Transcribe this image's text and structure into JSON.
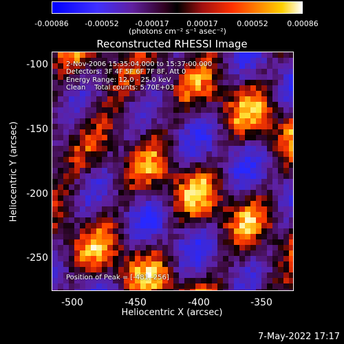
{
  "colorbar": {
    "ticks": [
      "-0.00086",
      "-0.00052",
      "-0.00017",
      "0.00017",
      "0.00052",
      "0.00086"
    ],
    "unit": "(photons cm⁻² s⁻¹ asec⁻²)"
  },
  "title": "Reconstructed RHESSI Image",
  "info": {
    "time": "2-Nov-2006 15:35:04.000 to 15:37:00.000",
    "detectors": "Detectors: 3F 4F 5F 6F 7F 8F, Att 0",
    "energy": "Energy Range: 12.0 - 25.0 keV",
    "clean": "Clean    Total counts: 5.70E+03",
    "peak": "Position of Peak = [-481,-256]"
  },
  "axes": {
    "xlabel": "Heliocentric X (arcsec)",
    "ylabel": "Heliocentric Y (arcsec)",
    "xticks": [
      "-500",
      "-450",
      "-400",
      "-350"
    ],
    "yticks": [
      "-100",
      "-150",
      "-200",
      "-250"
    ]
  },
  "timestamp": "7-May-2022 17:17",
  "colors": {
    "low": "#2020ff",
    "mid": "#6020a0",
    "high": "#ffffff",
    "accent": "#ff6000"
  }
}
